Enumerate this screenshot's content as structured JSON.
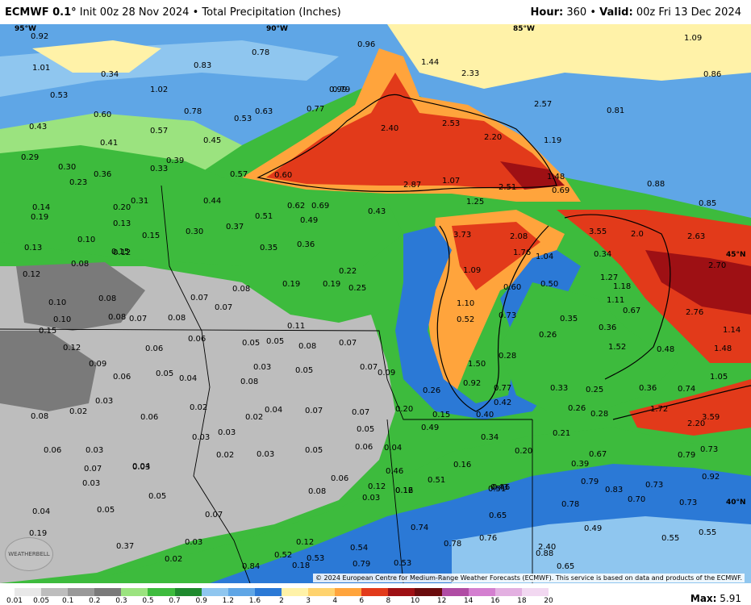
{
  "header": {
    "model": "ECMWF 0.1°",
    "init": "Init 00z 28 Nov 2024",
    "bullet": "•",
    "product": "Total Precipitation (Inches)",
    "hour_label": "Hour:",
    "hour": "360",
    "valid_label": "Valid:",
    "valid": "00z Fri 13 Dec 2024"
  },
  "longitude_labels": [
    "95°W",
    "90°W",
    "85°W",
    "45°N",
    "40°N"
  ],
  "precip_values": [
    "0.92",
    "1.01",
    "0.78",
    "0.83",
    "0.34",
    "1.02",
    "0.79",
    "0.99",
    "0.53",
    "0.60",
    "0.78",
    "0.63",
    "0.77",
    "0.43",
    "0.41",
    "0.57",
    "0.53",
    "0.45",
    "0.29",
    "0.30",
    "0.33",
    "0.39",
    "0.57",
    "0.36",
    "0.23",
    "0.14",
    "0.19",
    "0.20",
    "0.13",
    "0.31",
    "0.44",
    "0.62",
    "0.69",
    "0.51",
    "0.49",
    "0.43",
    "0.37",
    "0.30",
    "0.15",
    "0.10",
    "0.13",
    "0.12",
    "0.15",
    "0.35",
    "0.36",
    "0.08",
    "0.12",
    "0.22",
    "0.19",
    "0.19",
    "0.25",
    "0.08",
    "0.10",
    "0.08",
    "0.07",
    "0.07",
    "0.10",
    "0.08",
    "0.07",
    "0.08",
    "0.11",
    "0.15",
    "0.12",
    "0.06",
    "0.06",
    "0.05",
    "0.05",
    "0.08",
    "0.07",
    "0.09",
    "0.06",
    "0.05",
    "0.04",
    "0.03",
    "0.05",
    "0.08",
    "0.07",
    "0.09",
    "0.03",
    "0.02",
    "0.02",
    "0.02",
    "0.04",
    "0.07",
    "0.07",
    "0.08",
    "0.06",
    "0.03",
    "0.03",
    "0.05",
    "0.06",
    "0.06",
    "0.03",
    "0.03",
    "0.02",
    "0.03",
    "0.05",
    "0.04",
    "0.07",
    "0.03",
    "0.04",
    "0.05",
    "0.08",
    "0.06",
    "0.12",
    "0.16",
    "0.04",
    "0.05",
    "0.07",
    "0.03",
    "0.03",
    "0.12",
    "0.19",
    "0.37",
    "0.02",
    "0.18",
    "0.46",
    "0.54",
    "0.52",
    "0.53",
    "0.84",
    "0.79",
    "0.53",
    "0.74",
    "0.78",
    "0.76",
    "0.65",
    "2.40",
    "0.96",
    "1.44",
    "2.33",
    "2.40",
    "2.53",
    "2.20",
    "1.19",
    "2.57",
    "0.60",
    "2.87",
    "1.07",
    "2.51",
    "1.48",
    "0.69",
    "1.25",
    "3.73",
    "2.08",
    "1.76",
    "1.04",
    "3.55",
    "2.0",
    "2.63",
    "1.09",
    "0.60",
    "0.50",
    "0.34",
    "1.27",
    "1.10",
    "0.52",
    "0.73",
    "0.28",
    "0.26",
    "0.35",
    "0.36",
    "1.52",
    "1.50",
    "0.92",
    "0.77",
    "0.42",
    "0.33",
    "0.25",
    "0.26",
    "0.28",
    "0.21",
    "0.34",
    "0.20",
    "0.16",
    "0.12",
    "0.49",
    "0.40",
    "0.26",
    "0.15",
    "0.20",
    "0.51",
    "0.46",
    "0.43",
    "0.39",
    "0.67",
    "0.79",
    "0.83",
    "0.73",
    "0.78",
    "0.70",
    "0.73",
    "0.49",
    "0.55",
    "0.55",
    "0.79",
    "0.92",
    "0.73",
    "1.09",
    "0.86",
    "0.81",
    "0.88",
    "0.85",
    "2.70",
    "2.76",
    "1.14",
    "1.48",
    "1.05",
    "0.48",
    "0.36",
    "0.74",
    "1.72",
    "3.59",
    "2.20",
    "0.67",
    "1.11",
    "1.18",
    "0.88",
    "0.65",
    "0.51"
  ],
  "credit": "© 2024 European Centre for Medium-Range Weather Forecasts (ECMWF). This service is based on data and products of the ECMWF.",
  "logo_text": "WEATHERBELL",
  "legend": {
    "ticks": [
      "0.01",
      "0.05",
      "0.1",
      "0.2",
      "0.3",
      "0.5",
      "0.7",
      "0.9",
      "1.2",
      "1.6",
      "2",
      "3",
      "4",
      "6",
      "8",
      "10",
      "12",
      "14",
      "16",
      "18",
      "20"
    ],
    "max_label": "Max:",
    "max_value": "5.91"
  },
  "colors": {
    "gray_light": "#bdbdbd",
    "gray_dark": "#7a7a7a",
    "green_light": "#9be37f",
    "green": "#3dbb3d",
    "green_dark": "#1e8a2d",
    "blue_light": "#8fc6ef",
    "blue": "#2b79d6",
    "yellow": "#fff2a8",
    "orange": "#ffa43c",
    "red": "#e23a1a",
    "dark_red": "#9e1014"
  }
}
